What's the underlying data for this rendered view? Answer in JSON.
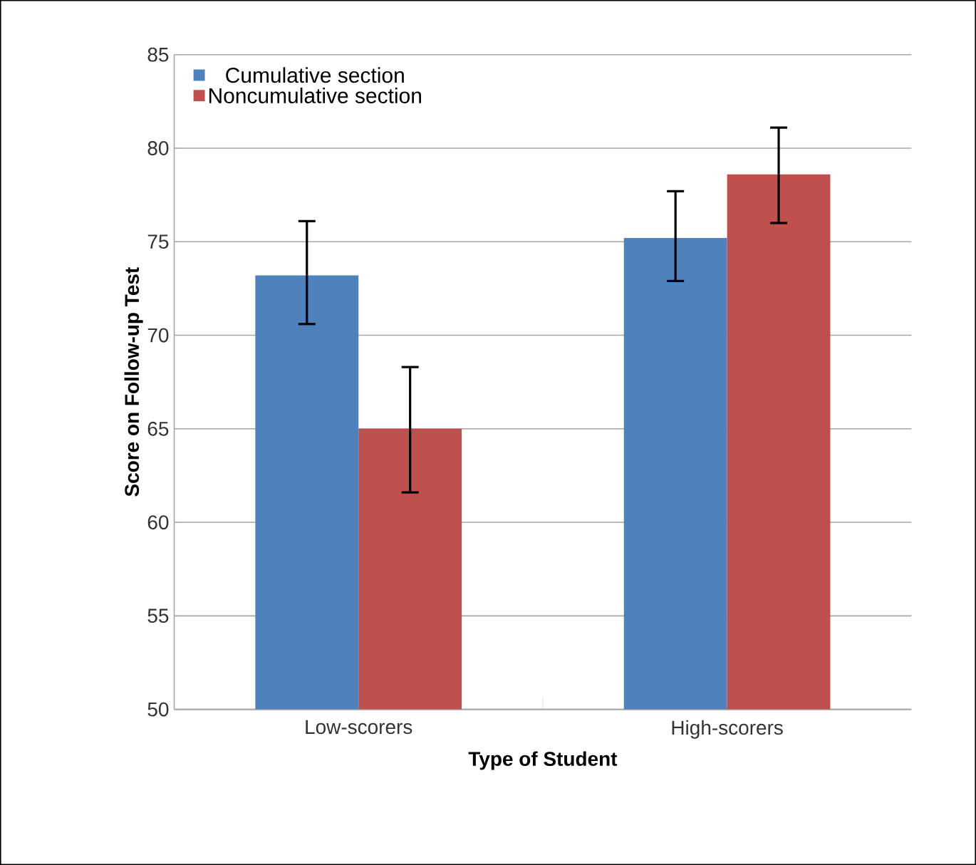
{
  "chart_data": {
    "type": "bar",
    "xlabel": "Type of Student",
    "ylabel": "Score on Follow-up Test",
    "categories": [
      "Low-scorers",
      "High-scorers"
    ],
    "series": [
      {
        "name": "Cumulative section",
        "color": "#4f81bd",
        "values": [
          73.2,
          75.2
        ],
        "errors": [
          [
            70.6,
            76.1
          ],
          [
            72.9,
            77.7
          ]
        ]
      },
      {
        "name": "Noncumulative section",
        "color": "#c0504d",
        "values": [
          65.0,
          78.6
        ],
        "errors": [
          [
            61.6,
            68.3
          ],
          [
            76.0,
            81.1
          ]
        ]
      }
    ],
    "ylim": [
      50,
      85
    ],
    "yticks": [
      50,
      55,
      60,
      65,
      70,
      75,
      80,
      85
    ],
    "grid": "y",
    "legend": "top left"
  }
}
